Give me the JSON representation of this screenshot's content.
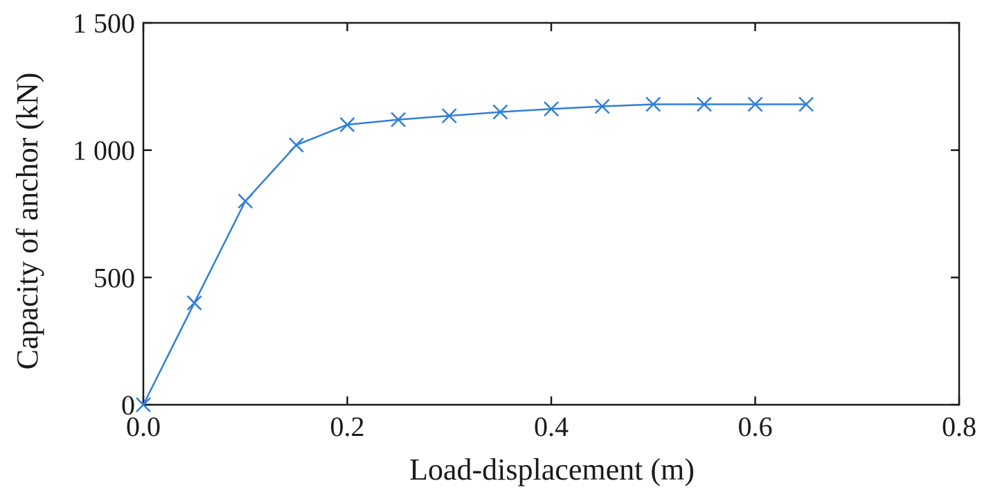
{
  "chart_data": {
    "type": "line",
    "title": "",
    "xlabel": "Load-displacement (m)",
    "ylabel": "Capacity of anchor (kN)",
    "xlim": [
      0,
      0.8
    ],
    "ylim": [
      0,
      1500
    ],
    "x_ticks": [
      0,
      0.2,
      0.4,
      0.6,
      0.8
    ],
    "x_tick_labels": [
      "0.0",
      "0.2",
      "0.4",
      "0.6",
      "0.8"
    ],
    "y_ticks": [
      0,
      500,
      1000,
      1500
    ],
    "y_tick_labels": [
      "0",
      "500",
      "1 000",
      "1 500"
    ],
    "grid": false,
    "legend": "none",
    "series": [
      {
        "color": "#2f7ed8",
        "marker": "x",
        "x": [
          0,
          0.05,
          0.1,
          0.15,
          0.2,
          0.25,
          0.3,
          0.35,
          0.4,
          0.45,
          0.5,
          0.55,
          0.6,
          0.65
        ],
        "y": [
          0,
          400,
          800,
          1020,
          1100,
          1120,
          1135,
          1150,
          1162,
          1172,
          1180,
          1180,
          1180,
          1180
        ]
      }
    ]
  }
}
